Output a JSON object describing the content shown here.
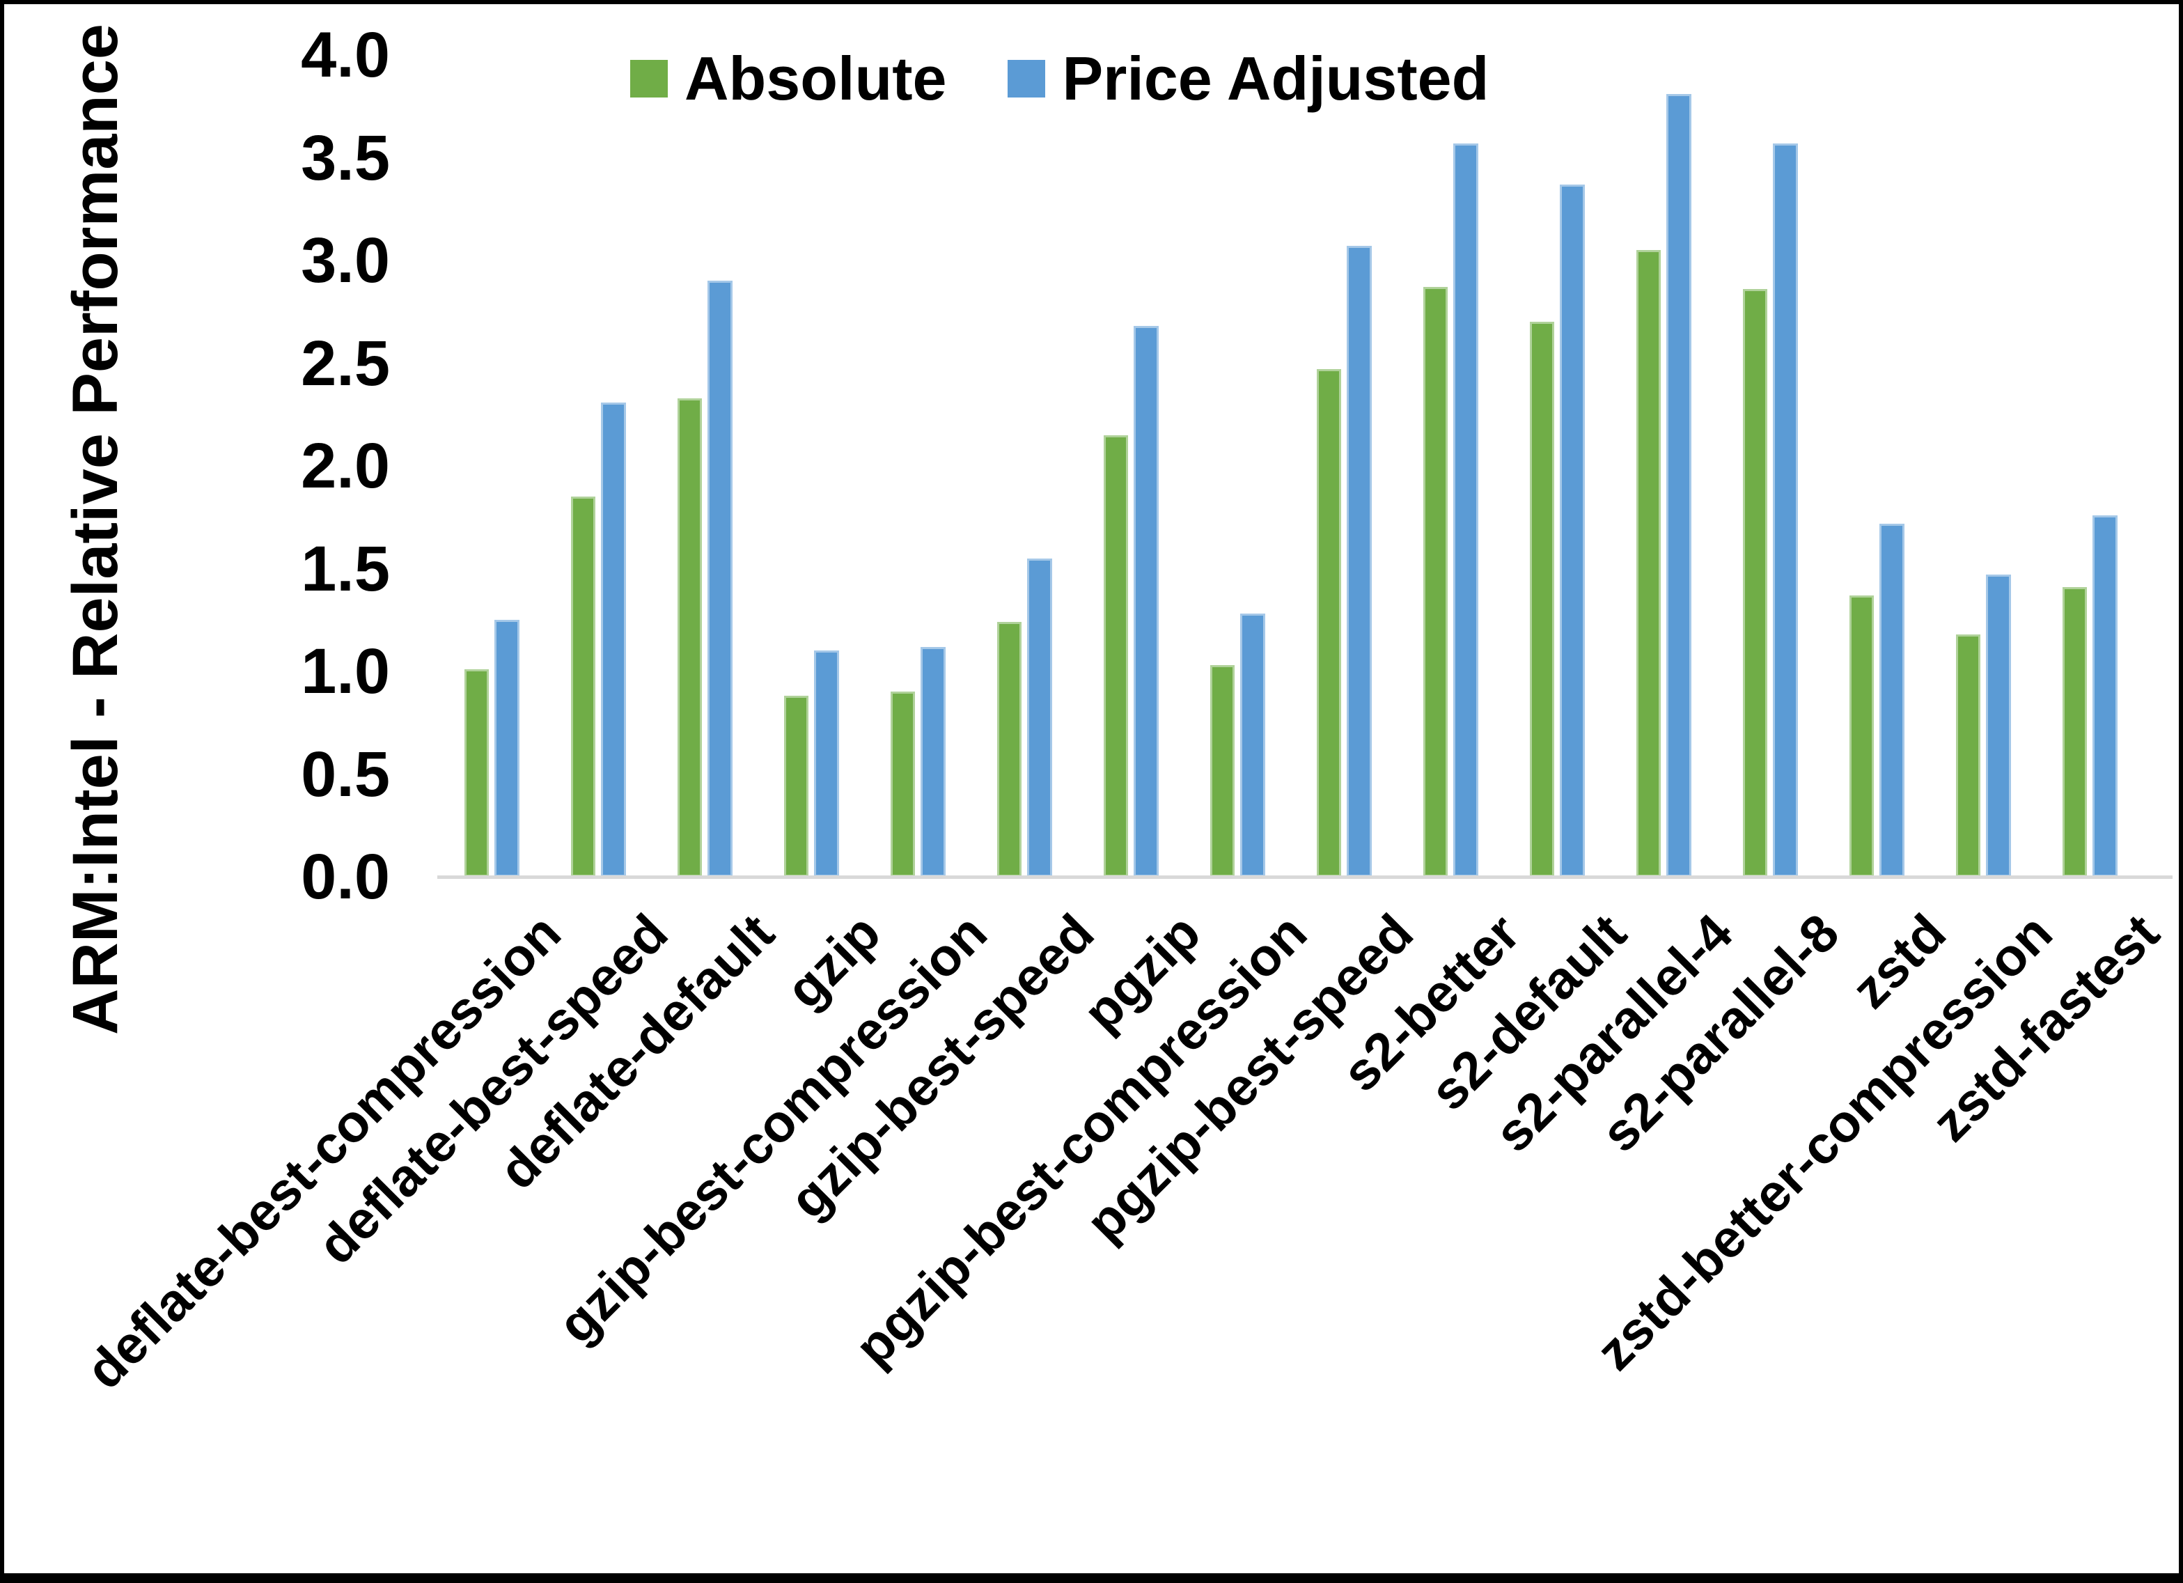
{
  "y_axis": {
    "title": "ARM:Intel - Relative Performance",
    "tick_labels": [
      "4.0",
      "3.5",
      "3.0",
      "2.5",
      "2.0",
      "1.5",
      "1.0",
      "0.5",
      "0.0"
    ]
  },
  "legend": [
    {
      "label": "Absolute",
      "color": "#70AD47"
    },
    {
      "label": "Price Adjusted",
      "color": "#5B9BD5"
    }
  ],
  "chart_data": {
    "type": "bar",
    "title": "",
    "xlabel": "",
    "ylabel": "ARM:Intel - Relative Performance",
    "ylim": [
      0.0,
      4.0
    ],
    "ytick_step": 0.5,
    "grid": false,
    "legend_position": "top",
    "categories": [
      "deflate-best-compression",
      "deflate-best-speed",
      "deflate-default",
      "gzip",
      "gzip-best-compression",
      "gzip-best-speed",
      "pgzip",
      "pgzip-best-compression",
      "pgzip-best-speed",
      "s2-better",
      "s2-default",
      "s2-parallel-4",
      "s2-parallel-8",
      "zstd",
      "zstd-better-compression",
      "zstd-fastest"
    ],
    "series": [
      {
        "name": "Absolute",
        "color": "#70AD47",
        "values": [
          1.01,
          1.85,
          2.33,
          0.88,
          0.9,
          1.24,
          2.15,
          1.03,
          2.47,
          2.87,
          2.7,
          3.05,
          2.86,
          1.37,
          1.18,
          1.41
        ]
      },
      {
        "name": "Price Adjusted",
        "color": "#5B9BD5",
        "values": [
          1.25,
          2.31,
          2.9,
          1.1,
          1.12,
          1.55,
          2.68,
          1.28,
          3.07,
          3.57,
          3.37,
          3.81,
          3.57,
          1.72,
          1.47,
          1.76
        ]
      }
    ]
  }
}
